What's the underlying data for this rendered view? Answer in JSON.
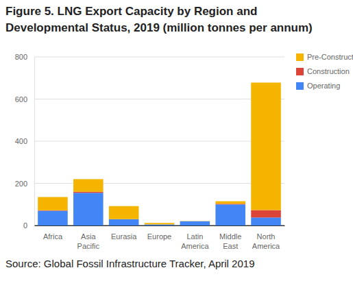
{
  "chart_data": {
    "type": "bar",
    "title": "Figure 5. LNG Export Capacity by Region and Developmental Status, 2019 (million tonnes per annum)",
    "source": "Source: Global Fossil Infrastructure Tracker, April 2019",
    "categories": [
      "Africa",
      "Asia Pacific",
      "Eurasia",
      "Europe",
      "Latin America",
      "Middle East",
      "North America"
    ],
    "series": [
      {
        "name": "Operating",
        "color": "#4285f4",
        "values": [
          70,
          155,
          30,
          5,
          20,
          100,
          38
        ]
      },
      {
        "name": "Construction",
        "color": "#db4437",
        "values": [
          2,
          5,
          0,
          0,
          0,
          3,
          35
        ]
      },
      {
        "name": "Pre-Construction",
        "color": "#f4b400",
        "values": [
          63,
          60,
          62,
          7,
          1,
          12,
          605
        ]
      }
    ],
    "ylim": [
      0,
      800
    ],
    "yticks": [
      0,
      200,
      400,
      600,
      800
    ],
    "stacked": true,
    "grid": true,
    "legend": "right"
  }
}
